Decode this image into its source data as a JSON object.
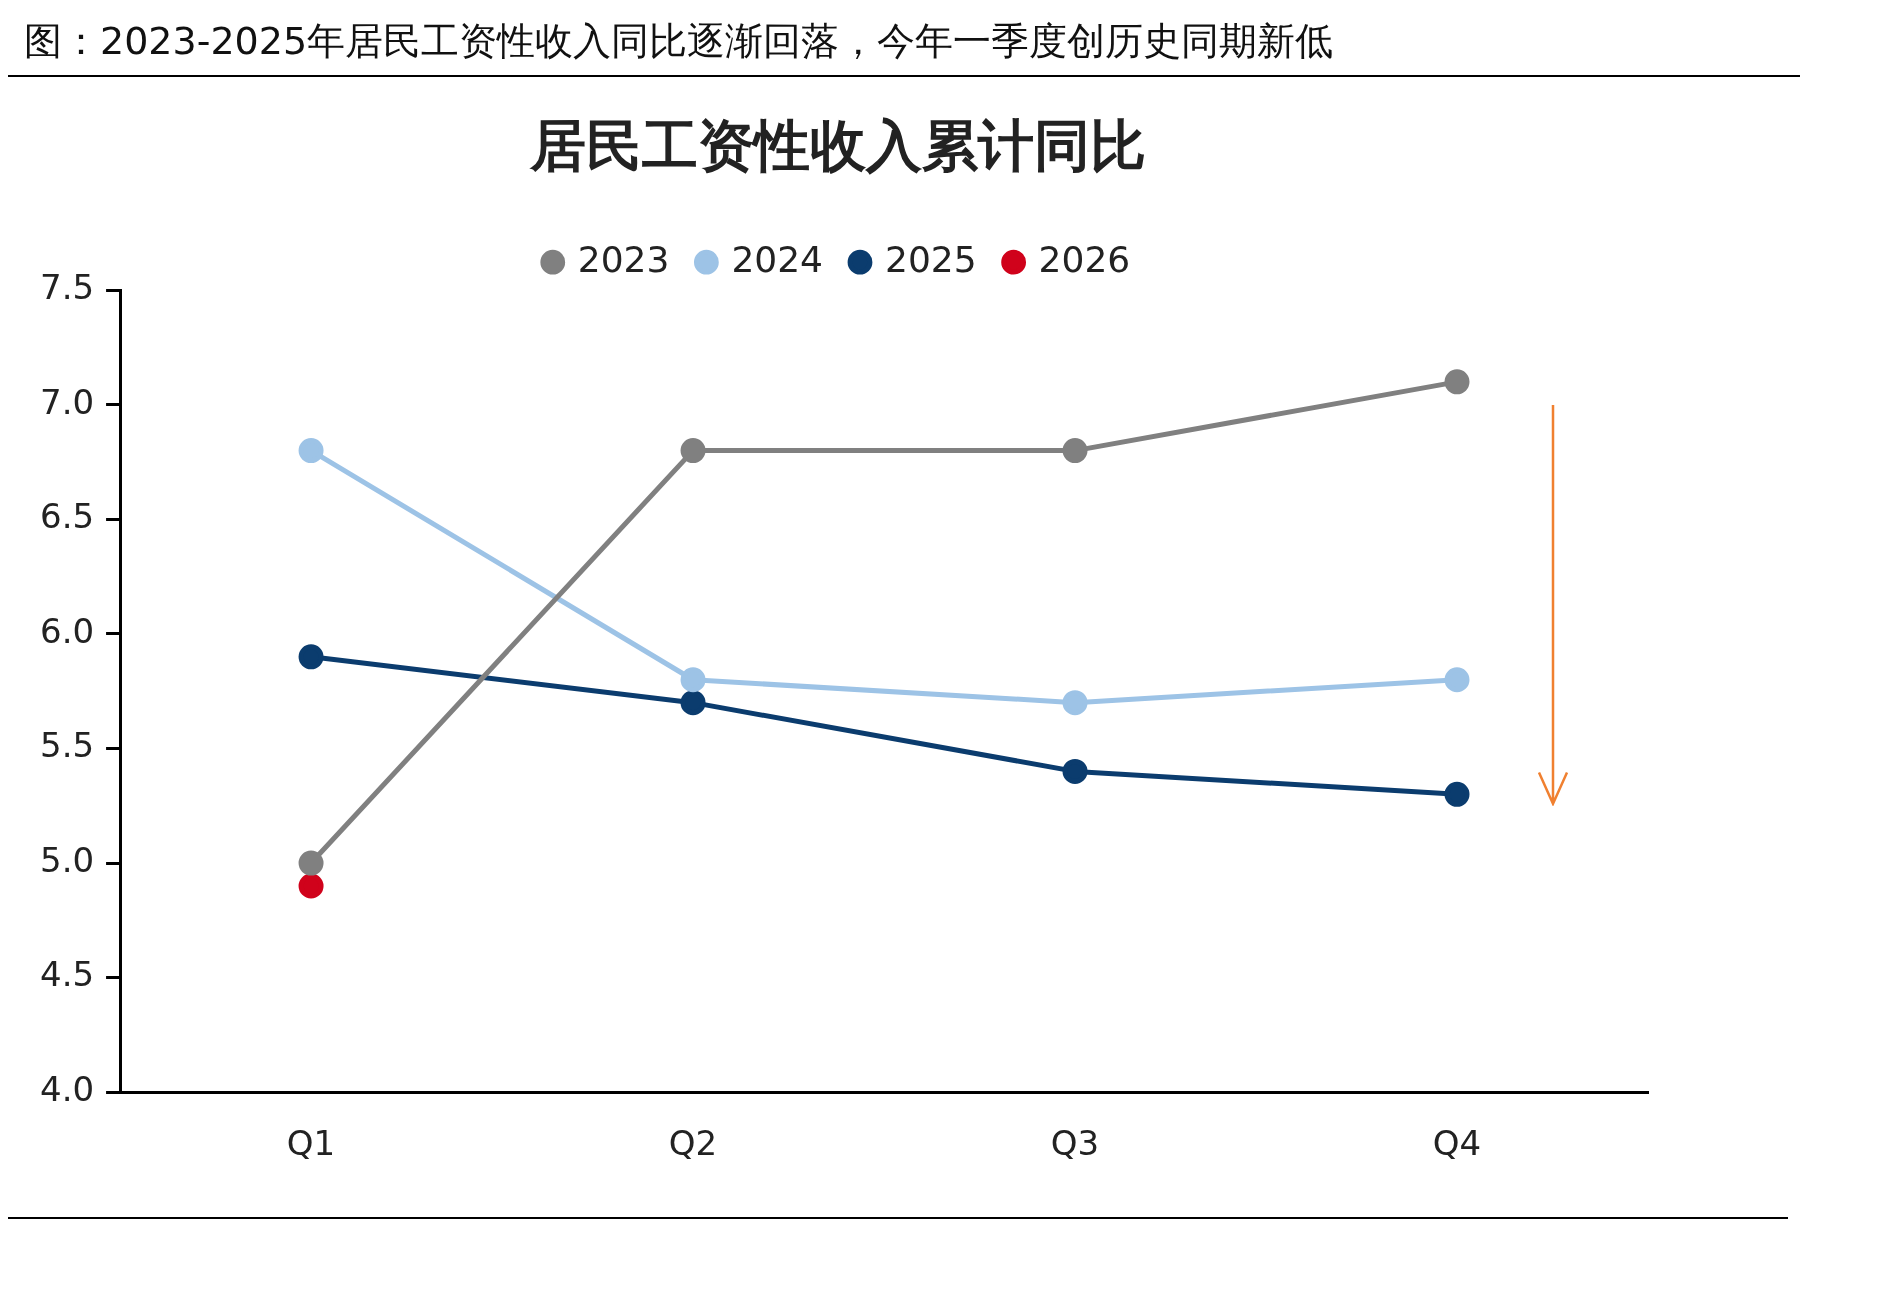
{
  "chart_data": {
    "type": "line",
    "title": "图：2023-2025年居民工资性收入同比逐渐回落，今年一季度创历史同期新低",
    "subtitle": "居民工资性收入累计同比",
    "categories": [
      "Q1",
      "Q2",
      "Q3",
      "Q4"
    ],
    "series": [
      {
        "name": "2023",
        "color": "#808080",
        "values": [
          5.0,
          6.8,
          6.8,
          7.1
        ]
      },
      {
        "name": "2024",
        "color": "#9dc3e6",
        "values": [
          6.8,
          5.8,
          5.7,
          5.8
        ]
      },
      {
        "name": "2025",
        "color": "#0b3c6e",
        "values": [
          5.9,
          5.7,
          5.4,
          5.3
        ]
      },
      {
        "name": "2026",
        "color": "#d0021b",
        "values": [
          4.9,
          null,
          null,
          null
        ]
      }
    ],
    "ylim": [
      4.0,
      7.5
    ],
    "yticks": [
      {
        "value": 4.0,
        "label": "4.0"
      },
      {
        "value": 4.5,
        "label": "4.5"
      },
      {
        "value": 5.0,
        "label": "5.0"
      },
      {
        "value": 5.5,
        "label": "5.5"
      },
      {
        "value": 6.0,
        "label": "6.0"
      },
      {
        "value": 6.5,
        "label": "6.5"
      },
      {
        "value": 7.0,
        "label": "7.0"
      },
      {
        "value": 7.5,
        "label": "7.5"
      }
    ],
    "grid": false,
    "legend": "top",
    "marker": "circle",
    "line_style": "solid"
  }
}
